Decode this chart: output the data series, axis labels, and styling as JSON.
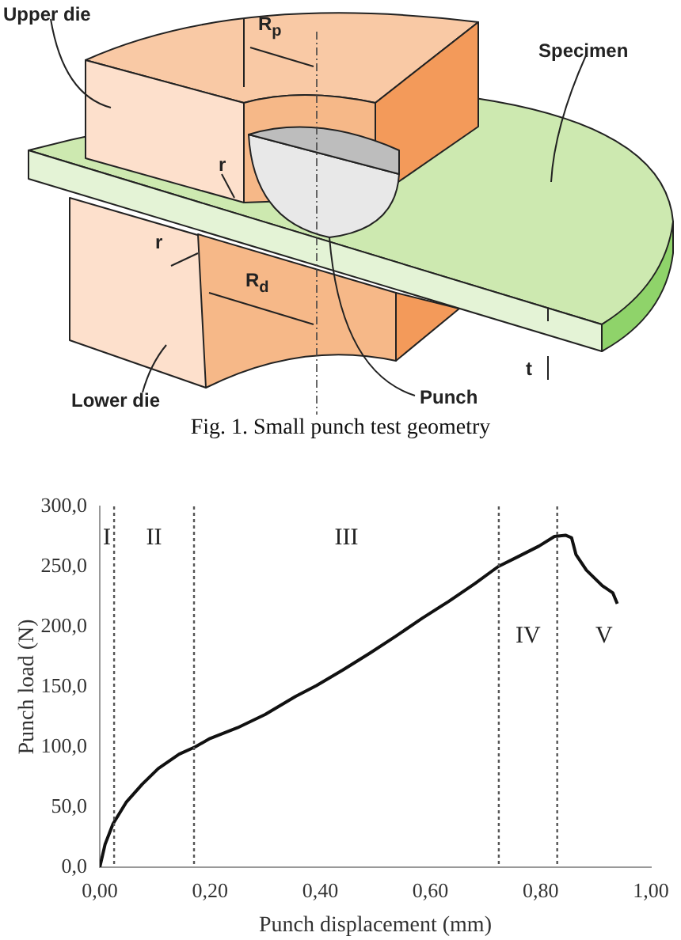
{
  "chart_data": {
    "type": "line",
    "xlabel": "Punch displacement (mm)",
    "ylabel": "Punch load (N)",
    "x": [
      0,
      0.0096,
      0.024,
      0.048,
      0.077,
      0.106,
      0.144,
      0.173,
      0.2,
      0.25,
      0.3,
      0.355,
      0.393,
      0.441,
      0.49,
      0.537,
      0.585,
      0.633,
      0.681,
      0.723,
      0.758,
      0.797,
      0.825,
      0.845,
      0.856,
      0.864,
      0.883,
      0.912,
      0.931,
      0.939
    ],
    "series": [
      {
        "color": "#111111",
        "values": [
          0,
          19,
          36,
          54,
          69,
          82,
          94,
          100,
          107,
          116,
          127,
          142,
          151,
          164,
          178,
          192,
          207,
          221,
          236,
          250,
          258,
          267,
          275,
          276,
          274,
          260,
          247,
          234,
          228,
          219
        ]
      }
    ],
    "xlim": [
      0,
      1
    ],
    "ylim": [
      0,
      300
    ],
    "xticks": [
      {
        "value": 0,
        "label": "0,00"
      },
      {
        "value": 0.2,
        "label": "0,20"
      },
      {
        "value": 0.4,
        "label": "0,40"
      },
      {
        "value": 0.6,
        "label": "0,60"
      },
      {
        "value": 0.8,
        "label": "0,80"
      },
      {
        "value": 1,
        "label": "1,00"
      }
    ],
    "yticks": [
      {
        "value": 0,
        "label": "0,0"
      },
      {
        "value": 50,
        "label": "50,0"
      },
      {
        "value": 100,
        "label": "100,0"
      },
      {
        "value": 150,
        "label": "150,0"
      },
      {
        "value": 200,
        "label": "200,0"
      },
      {
        "value": 250,
        "label": "250,0"
      },
      {
        "value": 300,
        "label": "300,0"
      }
    ],
    "grid": false,
    "legend": false,
    "marker": "none",
    "line_style": "solid",
    "ref_lines": [
      {
        "axis": "x",
        "value": 0.026,
        "color": "#555555",
        "line_style": "dotted"
      },
      {
        "axis": "x",
        "value": 0.171,
        "color": "#555555",
        "line_style": "dotted"
      },
      {
        "axis": "x",
        "value": 0.724,
        "color": "#555555",
        "line_style": "dotted"
      },
      {
        "axis": "x",
        "value": 0.83,
        "color": "#555555",
        "line_style": "dotted"
      }
    ],
    "annotations": [
      "I",
      "II",
      "III",
      "IV",
      "V",
      "Upper die",
      "R$_{p}$",
      "Specimen",
      "r",
      "r",
      "R$_{d}$",
      "t",
      "Lower die",
      "Punch",
      "Fig. 1. Small punch test geometry"
    ]
  }
}
